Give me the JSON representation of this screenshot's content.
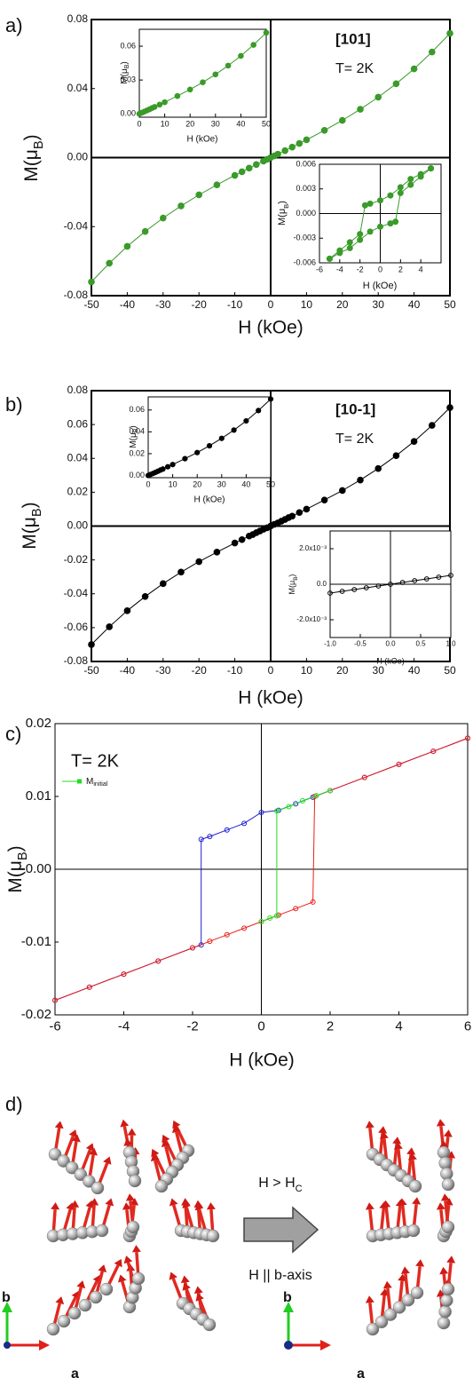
{
  "chart_data": [
    {
      "type": "line",
      "panel_label": "a)",
      "annotations": [
        "[101]",
        "T= 2K"
      ],
      "x_label": "H (kOe)",
      "y_label": "M(μB)",
      "xlim": [
        -50,
        50
      ],
      "ylim": [
        -0.08,
        0.08
      ],
      "xticks": [
        -50,
        -40,
        -30,
        -20,
        -10,
        0,
        10,
        20,
        30,
        40,
        50
      ],
      "yticks": [
        -0.08,
        -0.04,
        {
          "value": 0,
          "label": "0.00"
        },
        0.04,
        0.08
      ],
      "zero_lines": true,
      "series": [
        {
          "color": "#3a9a2a",
          "marker": "filled",
          "x": [
            -50,
            -45,
            -40,
            -35,
            -30,
            -25,
            -20,
            -15,
            -10,
            -8,
            -6,
            -4,
            -2,
            -1,
            0,
            1,
            2,
            4,
            6,
            8,
            10,
            15,
            20,
            25,
            30,
            35,
            40,
            45,
            50
          ],
          "values": [
            -0.072,
            -0.0612,
            -0.0514,
            -0.0428,
            -0.035,
            -0.028,
            -0.0216,
            -0.0158,
            -0.0103,
            -0.0082,
            -0.0061,
            -0.004,
            -0.002,
            -0.001,
            0,
            0.001,
            0.002,
            0.004,
            0.0061,
            0.0082,
            0.0103,
            0.0158,
            0.0216,
            0.028,
            0.035,
            0.0428,
            0.0514,
            0.0612,
            0.072
          ]
        }
      ]
    },
    {
      "type": "line",
      "x_label": "H (kOe)",
      "y_label": "M(μB)",
      "xlim": [
        0,
        50
      ],
      "ylim": [
        -0.003,
        0.075
      ],
      "xticks": [
        0,
        10,
        20,
        30,
        40,
        50
      ],
      "yticks": [
        {
          "value": 0,
          "label": "0.00"
        },
        0.03,
        0.06
      ],
      "zero_lines": false,
      "series": [
        {
          "color": "#3a9a2a",
          "marker": "filled",
          "x": [
            0,
            1,
            2,
            3,
            4,
            5,
            6,
            8,
            10,
            15,
            20,
            25,
            30,
            35,
            40,
            45,
            50
          ],
          "values": [
            0,
            0.001,
            0.002,
            0.003,
            0.004,
            0.0051,
            0.0061,
            0.0082,
            0.0103,
            0.0158,
            0.0216,
            0.028,
            0.035,
            0.0428,
            0.0514,
            0.0612,
            0.072
          ]
        }
      ]
    },
    {
      "type": "line",
      "x_label": "H (kOe)",
      "y_label": "M(μB)",
      "xlim": [
        -6,
        6
      ],
      "ylim": [
        -0.006,
        0.006
      ],
      "xticks": [
        -6,
        -4,
        -2,
        0,
        2,
        4
      ],
      "yticks": [
        -0.006,
        -0.003,
        {
          "value": 0,
          "label": "0.000"
        },
        0.003,
        0.006
      ],
      "zero_lines": true,
      "series": [
        {
          "color": "#3a9a2a",
          "marker": "filled",
          "x": [
            5,
            4,
            3,
            2,
            1,
            0,
            -1,
            -1.5,
            -2,
            -3,
            -4,
            -5
          ],
          "values": [
            0.0055,
            0.0048,
            0.0042,
            0.0032,
            0.0022,
            0.0016,
            0.0012,
            0.001,
            -0.0025,
            -0.0035,
            -0.0045,
            -0.0055
          ]
        },
        {
          "color": "#3a9a2a",
          "marker": "filled",
          "x": [
            -5,
            -4,
            -3,
            -2,
            -1,
            0,
            1,
            1.5,
            2,
            3,
            4,
            5
          ],
          "values": [
            -0.0055,
            -0.0048,
            -0.0042,
            -0.0032,
            -0.0022,
            -0.0016,
            -0.0012,
            -0.001,
            0.0025,
            0.0035,
            0.0045,
            0.0055
          ]
        }
      ]
    },
    {
      "type": "line",
      "panel_label": "b)",
      "annotations": [
        "[10-1]",
        "T= 2K"
      ],
      "x_label": "H (kOe)",
      "y_label": "M(μB)",
      "xlim": [
        -50,
        50
      ],
      "ylim": [
        -0.08,
        0.08
      ],
      "xticks": [
        -50,
        -40,
        -30,
        -20,
        -10,
        0,
        10,
        20,
        30,
        40,
        50
      ],
      "yticks": [
        -0.08,
        -0.06,
        -0.04,
        -0.02,
        {
          "value": 0,
          "label": "0.00"
        },
        0.02,
        0.04,
        0.06,
        0.08
      ],
      "zero_lines": true,
      "series": [
        {
          "color": "#000000",
          "marker": "filled",
          "x": [
            -50,
            -45,
            -40,
            -35,
            -30,
            -25,
            -20,
            -15,
            -10,
            -8,
            -6,
            -5,
            -4,
            -3,
            -2,
            -1,
            0,
            1,
            2,
            3,
            4,
            5,
            6,
            8,
            10,
            15,
            20,
            25,
            30,
            35,
            40,
            45,
            50
          ],
          "values": [
            -0.07,
            -0.0595,
            -0.05,
            -0.0416,
            -0.034,
            -0.0272,
            -0.021,
            -0.0154,
            -0.01,
            -0.008,
            -0.0059,
            -0.005,
            -0.0039,
            -0.0029,
            -0.0019,
            -0.001,
            0,
            0.001,
            0.0019,
            0.0029,
            0.0039,
            0.005,
            0.0059,
            0.008,
            0.01,
            0.0154,
            0.021,
            0.0272,
            0.034,
            0.0416,
            0.05,
            0.0595,
            0.07
          ]
        }
      ]
    },
    {
      "type": "line",
      "x_label": "H (kOe)",
      "y_label": "M(μB)",
      "xlim": [
        0,
        50
      ],
      "ylim": [
        -0.002,
        0.072
      ],
      "xticks": [
        0,
        10,
        20,
        30,
        40,
        50
      ],
      "yticks": [
        {
          "value": 0,
          "label": "0.00"
        },
        0.02,
        0.04,
        0.06
      ],
      "zero_lines": false,
      "series": [
        {
          "color": "#000000",
          "marker": "filled",
          "x": [
            0,
            1,
            2,
            3,
            4,
            5,
            6,
            8,
            10,
            15,
            20,
            25,
            30,
            35,
            40,
            45,
            50
          ],
          "values": [
            0,
            0.001,
            0.0019,
            0.0029,
            0.0039,
            0.005,
            0.0059,
            0.008,
            0.01,
            0.0154,
            0.021,
            0.0272,
            0.034,
            0.0416,
            0.05,
            0.0595,
            0.07
          ]
        }
      ]
    },
    {
      "type": "line",
      "x_label": "H (kOe)",
      "y_label": "M(μB)",
      "xlim": [
        -1,
        1
      ],
      "ylim": [
        -0.003,
        0.003
      ],
      "xticks": [
        {
          "value": -1,
          "label": "-1.0"
        },
        -0.5,
        {
          "value": 0,
          "label": "0.0"
        },
        0.5,
        {
          "value": 1,
          "label": "1.0"
        }
      ],
      "yticks": [
        {
          "value": -0.002,
          "label": "-2.0x10⁻³"
        },
        {
          "value": 0,
          "label": "0.0"
        },
        {
          "value": 0.002,
          "label": "2.0x10⁻³"
        }
      ],
      "zero_lines": true,
      "series": [
        {
          "color": "#000000",
          "marker": "open",
          "x": [
            -1,
            -0.8,
            -0.6,
            -0.4,
            -0.2,
            0,
            0.2,
            0.4,
            0.6,
            0.8,
            1
          ],
          "values": [
            -0.0005,
            -0.0004,
            -0.0003,
            -0.0002,
            -0.0001,
            0,
            0.0001,
            0.0002,
            0.0003,
            0.0004,
            0.0005
          ]
        }
      ]
    },
    {
      "type": "line",
      "panel_label": "c)",
      "annotations": [
        "T= 2K"
      ],
      "x_label": "H (kOe)",
      "y_label": "M(μB)",
      "xlim": [
        -6,
        6
      ],
      "ylim": [
        -0.02,
        0.02
      ],
      "xticks": [
        -6,
        -4,
        -2,
        0,
        2,
        4,
        6
      ],
      "yticks": [
        -0.02,
        -0.01,
        {
          "value": 0,
          "label": "0.00"
        },
        0.01,
        0.02
      ],
      "zero_lines": true,
      "series": [
        {
          "color": "#1f1fd0",
          "marker": "open",
          "x": [
            6,
            5,
            4,
            3,
            2,
            1.5,
            1,
            0.5,
            0,
            -0.5,
            -1,
            -1.5,
            -1.75,
            -1.75,
            -2,
            -3,
            -4,
            -5,
            -6
          ],
          "values": [
            0.018,
            0.0162,
            0.0144,
            0.0126,
            0.0108,
            0.0099,
            0.009,
            0.0081,
            0.0078,
            0.0063,
            0.0054,
            0.0045,
            0.0041,
            -0.0104,
            -0.0108,
            -0.0126,
            -0.0144,
            -0.0162,
            -0.018
          ]
        },
        {
          "color": "#e8201a",
          "marker": "open",
          "x": [
            -6,
            -5,
            -4,
            -3,
            -2,
            -1.5,
            -1,
            -0.5,
            0,
            0.5,
            1,
            1.5,
            1.55,
            2,
            3,
            4,
            5,
            6
          ],
          "values": [
            -0.018,
            -0.0162,
            -0.0144,
            -0.0126,
            -0.0108,
            -0.0099,
            -0.009,
            -0.0081,
            -0.0072,
            -0.0063,
            -0.0054,
            -0.0045,
            0.01,
            0.0108,
            0.0126,
            0.0144,
            0.0162,
            0.018
          ]
        },
        {
          "name": "Minitial",
          "color": "#22dd22",
          "marker": "open",
          "x": [
            0,
            0.25,
            0.45,
            0.45,
            0.8,
            1.2,
            1.6,
            2
          ],
          "values": [
            -0.0072,
            -0.0067,
            -0.0064,
            0.008,
            0.0086,
            0.0094,
            0.0101,
            0.0108
          ]
        }
      ]
    }
  ],
  "diagram": {
    "panel_label": "d)",
    "arrow_above": "H > HC",
    "arrow_below": "H || b-axis",
    "axis_labels": [
      "b",
      "a",
      "b",
      "a"
    ]
  }
}
